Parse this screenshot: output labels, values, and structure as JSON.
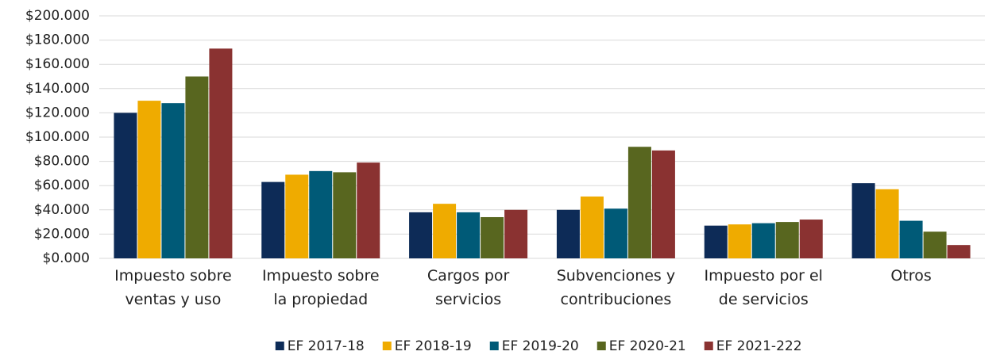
{
  "chart_data": {
    "type": "bar",
    "categories": [
      "Impuesto sobre\nventas y uso",
      "Impuesto sobre\nla propiedad",
      "Cargos por\nservicios",
      "Subvenciones y\ncontribuciones",
      "Impuesto por el\nde servicios",
      "Otros"
    ],
    "series": [
      {
        "name": "EF 2017-18",
        "color": "#0d2b57",
        "values": [
          120,
          63,
          38,
          40,
          27,
          62
        ]
      },
      {
        "name": "EF 2018-19",
        "color": "#efab00",
        "values": [
          130,
          69,
          45,
          51,
          28,
          57
        ]
      },
      {
        "name": "EF 2019-20",
        "color": "#005a77",
        "values": [
          128,
          72,
          38,
          41,
          29,
          31
        ]
      },
      {
        "name": "EF 2020-21",
        "color": "#58661f",
        "values": [
          150,
          71,
          34,
          92,
          30,
          22
        ]
      },
      {
        "name": "EF 2021-222",
        "color": "#8a3231",
        "values": [
          173,
          79,
          40,
          89,
          32,
          11
        ]
      }
    ],
    "ylim": [
      0,
      200
    ],
    "yticks": [
      {
        "value": 0,
        "label": "$0.000"
      },
      {
        "value": 20,
        "label": "$20.000"
      },
      {
        "value": 40,
        "label": "$40.000"
      },
      {
        "value": 60,
        "label": "$60.000"
      },
      {
        "value": 80,
        "label": "$80.000"
      },
      {
        "value": 100,
        "label": "$100.000"
      },
      {
        "value": 120,
        "label": "$120.000"
      },
      {
        "value": 140,
        "label": "$140.000"
      },
      {
        "value": 160,
        "label": "$160.000"
      },
      {
        "value": 180,
        "label": "$180.000"
      },
      {
        "value": 200,
        "label": "$200.000"
      }
    ],
    "grid": true,
    "legend": "bottom"
  }
}
